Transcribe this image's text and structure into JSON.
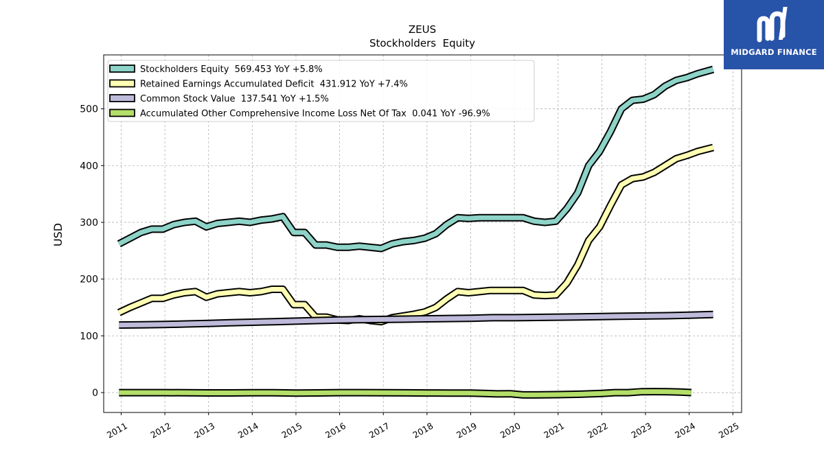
{
  "brand": {
    "name": "MIDGARD FINANCE",
    "bg_color": "#2753a8"
  },
  "chart_data": {
    "type": "line",
    "title": "ZEUS",
    "subtitle": "Stockholders  Equity",
    "ylabel": "USD",
    "xlabel": "",
    "xlim": [
      2010.6,
      2025.2
    ],
    "ylim": [
      -35,
      595
    ],
    "grid": true,
    "legend_position": "top-left",
    "x_ticks": [
      "2011",
      "2012",
      "2013",
      "2014",
      "2015",
      "2016",
      "2017",
      "2018",
      "2019",
      "2020",
      "2021",
      "2022",
      "2023",
      "2024",
      "2025"
    ],
    "y_ticks": [
      "0",
      "100",
      "200",
      "300",
      "400",
      "500"
    ],
    "series": [
      {
        "name": "Stockholders Equity",
        "legend_label": "Stockholders Equity  569.453 YoY +5.8%",
        "color": "#8dd3c7",
        "x": [
          2010.95,
          2011.2,
          2011.45,
          2011.7,
          2011.95,
          2012.2,
          2012.45,
          2012.7,
          2012.95,
          2013.2,
          2013.45,
          2013.7,
          2013.95,
          2014.2,
          2014.45,
          2014.7,
          2014.95,
          2015.2,
          2015.45,
          2015.7,
          2015.95,
          2016.2,
          2016.45,
          2016.7,
          2016.95,
          2017.2,
          2017.45,
          2017.7,
          2017.95,
          2018.2,
          2018.45,
          2018.7,
          2018.95,
          2019.2,
          2019.45,
          2019.7,
          2019.95,
          2020.2,
          2020.45,
          2020.7,
          2020.95,
          2021.2,
          2021.45,
          2021.7,
          2021.95,
          2022.2,
          2022.45,
          2022.7,
          2022.95,
          2023.2,
          2023.45,
          2023.7,
          2023.95,
          2024.2,
          2024.55
        ],
        "values": [
          262,
          272,
          282,
          288,
          288,
          296,
          300,
          302,
          292,
          298,
          300,
          302,
          300,
          304,
          306,
          310,
          282,
          282,
          260,
          260,
          256,
          256,
          258,
          256,
          254,
          262,
          266,
          268,
          272,
          280,
          296,
          308,
          307,
          308,
          308,
          308,
          308,
          308,
          302,
          300,
          302,
          324,
          352,
          400,
          425,
          460,
          500,
          515,
          517,
          525,
          540,
          550,
          555,
          562,
          569.453
        ]
      },
      {
        "name": "Retained Earnings Accumulated Deficit",
        "legend_label": "Retained Earnings Accumulated Deficit  431.912 YoY +7.4%",
        "color": "#ffffb3",
        "x": [
          2010.95,
          2011.2,
          2011.45,
          2011.7,
          2011.95,
          2012.2,
          2012.45,
          2012.7,
          2012.95,
          2013.2,
          2013.45,
          2013.7,
          2013.95,
          2014.2,
          2014.45,
          2014.7,
          2014.95,
          2015.2,
          2015.45,
          2015.7,
          2015.95,
          2016.2,
          2016.45,
          2016.7,
          2016.95,
          2017.2,
          2017.45,
          2017.7,
          2017.95,
          2018.2,
          2018.45,
          2018.7,
          2018.95,
          2019.2,
          2019.45,
          2019.7,
          2019.95,
          2020.2,
          2020.45,
          2020.7,
          2020.95,
          2021.2,
          2021.45,
          2021.7,
          2021.95,
          2022.2,
          2022.45,
          2022.7,
          2022.95,
          2023.2,
          2023.45,
          2023.7,
          2023.95,
          2024.2,
          2024.55
        ],
        "values": [
          141,
          150,
          158,
          166,
          166,
          172,
          176,
          178,
          168,
          174,
          176,
          178,
          176,
          178,
          182,
          182,
          155,
          155,
          133,
          133,
          128,
          127,
          130,
          127,
          125,
          132,
          135,
          138,
          142,
          150,
          165,
          178,
          176,
          178,
          180,
          180,
          180,
          180,
          172,
          171,
          172,
          193,
          225,
          268,
          292,
          330,
          366,
          377,
          380,
          388,
          400,
          412,
          418,
          425,
          431.912
        ]
      },
      {
        "name": "Common Stock Value",
        "legend_label": "Common Stock Value  137.541 YoY +1.5%",
        "color": "#bebada",
        "x": [
          2010.95,
          2011.5,
          2012.0,
          2012.5,
          2013.0,
          2013.5,
          2014.0,
          2014.5,
          2015.0,
          2015.5,
          2016.0,
          2016.5,
          2017.0,
          2017.5,
          2018.0,
          2018.5,
          2019.0,
          2019.5,
          2020.0,
          2020.5,
          2021.0,
          2021.5,
          2022.0,
          2022.5,
          2023.0,
          2023.5,
          2024.0,
          2024.55
        ],
        "values": [
          119,
          119.5,
          120,
          121,
          122,
          123,
          124,
          125,
          126,
          127,
          128,
          128.5,
          129,
          129.5,
          130,
          130.5,
          131,
          132,
          132,
          132.5,
          133,
          133.5,
          134,
          134.5,
          135,
          135.5,
          136.5,
          137.541
        ]
      },
      {
        "name": "Accumulated Other Comprehensive Income Loss Net Of Tax",
        "legend_label": "Accumulated Other Comprehensive Income Loss Net Of Tax  0.041 YoY -96.9%",
        "color": "#b3de69",
        "x": [
          2010.95,
          2011.5,
          2012.0,
          2012.5,
          2013.0,
          2013.5,
          2014.0,
          2014.5,
          2015.0,
          2015.5,
          2016.0,
          2016.5,
          2017.0,
          2017.5,
          2018.0,
          2018.5,
          2019.0,
          2019.3,
          2019.6,
          2019.9,
          2020.2,
          2020.5,
          2021.0,
          2021.5,
          2022.0,
          2022.3,
          2022.6,
          2022.9,
          2023.2,
          2023.5,
          2023.8,
          2024.05
        ],
        "values": [
          0,
          0,
          0,
          -0.3,
          -0.5,
          -0.5,
          -0.3,
          -0.3,
          -0.8,
          -0.5,
          0,
          0,
          -0.2,
          -0.4,
          -0.6,
          -0.8,
          -0.8,
          -1.5,
          -2.2,
          -2,
          -4,
          -4,
          -3.5,
          -2.8,
          -1.5,
          0,
          0,
          1.5,
          1.8,
          1.5,
          1,
          0.041
        ]
      }
    ]
  }
}
